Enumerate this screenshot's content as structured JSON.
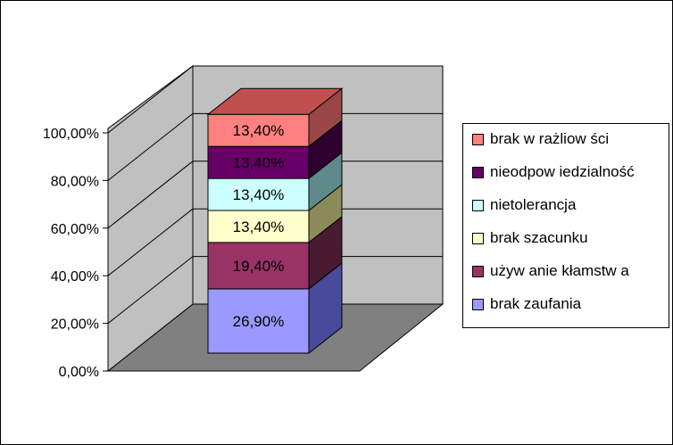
{
  "chart_data": {
    "type": "bar",
    "subtype": "stacked-100-percent-3d",
    "categories": [
      ""
    ],
    "series": [
      {
        "name": "brak zaufania",
        "values": [
          26.9
        ],
        "label": "26,90%",
        "color": "#9999ff",
        "side_color": "#4a4a9a",
        "top_color": "#7f7fd6"
      },
      {
        "name": "używ anie kłamstw a",
        "values": [
          19.4
        ],
        "label": "19,40%",
        "color": "#993366",
        "side_color": "#4a1a30",
        "top_color": "#7f2a55"
      },
      {
        "name": "brak szacunku",
        "values": [
          13.4
        ],
        "label": "13,40%",
        "color": "#ffffcc",
        "side_color": "#8a8a5a",
        "top_color": "#d6d6a8"
      },
      {
        "name": "nietolerancja",
        "values": [
          13.4
        ],
        "label": "13,40%",
        "color": "#ccffff",
        "side_color": "#5f8a8a",
        "top_color": "#a8d6d6"
      },
      {
        "name": "nieodpow iedzialność",
        "values": [
          13.4
        ],
        "label": "13,40%",
        "color": "#660066",
        "side_color": "#2e002e",
        "top_color": "#520052"
      },
      {
        "name": "brak w rażliow ści",
        "values": [
          13.4
        ],
        "label": "13,40%",
        "color": "#ff8080",
        "side_color": "#9a4646",
        "top_color": "#c05050"
      }
    ],
    "y_ticks": [
      "0,00%",
      "20,00%",
      "40,00%",
      "60,00%",
      "80,00%",
      "100,00%"
    ],
    "ylim": [
      0,
      100
    ],
    "grid": true,
    "legend_position": "right",
    "wall_color": "#c0c0c0",
    "floor_color": "#808080"
  }
}
